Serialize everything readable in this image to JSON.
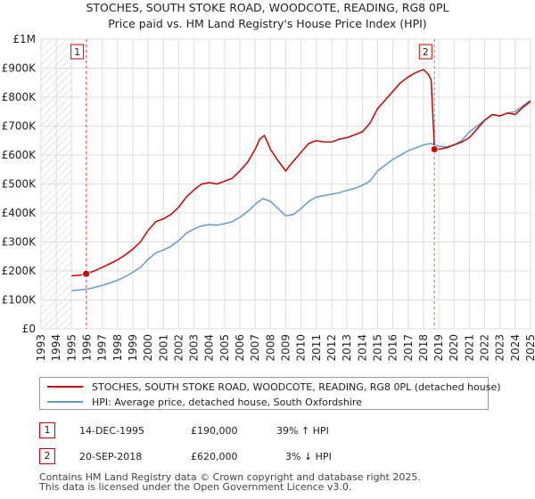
{
  "chart_data": {
    "type": "line",
    "title": "STOCHES, SOUTH STOKE ROAD, WOODCOTE, READING, RG8 0PL",
    "subtitle": "Price paid vs. HM Land Registry's House Price Index (HPI)",
    "xlabel": "",
    "ylabel": "",
    "xlim": [
      1993,
      2025
    ],
    "ylim": [
      0,
      1000000
    ],
    "y_ticks": [
      {
        "value": 0,
        "label": "£0"
      },
      {
        "value": 100000,
        "label": "£100K"
      },
      {
        "value": 200000,
        "label": "£200K"
      },
      {
        "value": 300000,
        "label": "£300K"
      },
      {
        "value": 400000,
        "label": "£400K"
      },
      {
        "value": 500000,
        "label": "£500K"
      },
      {
        "value": 600000,
        "label": "£600K"
      },
      {
        "value": 700000,
        "label": "£700K"
      },
      {
        "value": 800000,
        "label": "£800K"
      },
      {
        "value": 900000,
        "label": "£900K"
      },
      {
        "value": 1000000,
        "label": "£1M"
      }
    ],
    "x_ticks": [
      "1993",
      "1994",
      "1995",
      "1996",
      "1997",
      "1998",
      "1999",
      "2000",
      "2001",
      "2002",
      "2003",
      "2004",
      "2005",
      "2006",
      "2007",
      "2008",
      "2009",
      "2010",
      "2011",
      "2012",
      "2013",
      "2014",
      "2015",
      "2016",
      "2017",
      "2018",
      "2019",
      "2020",
      "2021",
      "2022",
      "2023",
      "2024",
      "2025"
    ],
    "grid": true,
    "legend_position": "below",
    "hatched_before": 1995.0,
    "series": [
      {
        "name": "STOCHES, SOUTH STOKE ROAD, WOODCOTE, READING, RG8 0PL (detached house)",
        "color": "#cc0000",
        "x": [
          1995.0,
          1995.5,
          1995.95,
          1996.5,
          1997.0,
          1997.5,
          1998.0,
          1998.5,
          1999.0,
          1999.5,
          2000.0,
          2000.5,
          2001.0,
          2001.5,
          2002.0,
          2002.5,
          2003.0,
          2003.5,
          2004.0,
          2004.5,
          2005.0,
          2005.5,
          2006.0,
          2006.5,
          2007.0,
          2007.3,
          2007.6,
          2008.0,
          2008.5,
          2009.0,
          2009.2,
          2009.6,
          2010.0,
          2010.5,
          2011.0,
          2011.5,
          2012.0,
          2012.5,
          2013.0,
          2013.5,
          2014.0,
          2014.5,
          2015.0,
          2015.5,
          2016.0,
          2016.5,
          2017.0,
          2017.5,
          2018.0,
          2018.3,
          2018.5,
          2018.72,
          2019.0,
          2019.5,
          2020.0,
          2020.5,
          2021.0,
          2021.5,
          2022.0,
          2022.5,
          2023.0,
          2023.5,
          2024.0,
          2024.5,
          2025.0
        ],
        "values": [
          183000,
          185000,
          190000,
          200000,
          212000,
          225000,
          238000,
          255000,
          275000,
          300000,
          340000,
          370000,
          380000,
          395000,
          420000,
          455000,
          480000,
          500000,
          505000,
          500000,
          510000,
          520000,
          545000,
          575000,
          620000,
          655000,
          668000,
          620000,
          580000,
          545000,
          560000,
          585000,
          610000,
          640000,
          650000,
          645000,
          645000,
          655000,
          660000,
          670000,
          680000,
          710000,
          760000,
          790000,
          820000,
          850000,
          870000,
          885000,
          895000,
          880000,
          860000,
          620000,
          620000,
          625000,
          635000,
          645000,
          660000,
          690000,
          720000,
          740000,
          735000,
          745000,
          740000,
          765000,
          785000
        ]
      },
      {
        "name": "HPI: Average price, detached house, South Oxfordshire",
        "color": "#6699cc",
        "x": [
          1995.0,
          1995.5,
          1996.0,
          1996.5,
          1997.0,
          1997.5,
          1998.0,
          1998.5,
          1999.0,
          1999.5,
          2000.0,
          2000.5,
          2001.0,
          2001.5,
          2002.0,
          2002.5,
          2003.0,
          2003.5,
          2004.0,
          2004.5,
          2005.0,
          2005.5,
          2006.0,
          2006.5,
          2007.0,
          2007.5,
          2008.0,
          2008.5,
          2009.0,
          2009.5,
          2010.0,
          2010.5,
          2011.0,
          2011.5,
          2012.0,
          2012.5,
          2013.0,
          2013.5,
          2014.0,
          2014.5,
          2015.0,
          2015.5,
          2016.0,
          2016.5,
          2017.0,
          2017.5,
          2018.0,
          2018.5,
          2019.0,
          2019.5,
          2020.0,
          2020.5,
          2021.0,
          2021.5,
          2022.0,
          2022.5,
          2023.0,
          2023.5,
          2024.0,
          2024.5,
          2025.0
        ],
        "values": [
          132000,
          134000,
          137000,
          143000,
          150000,
          158000,
          168000,
          180000,
          195000,
          212000,
          240000,
          262000,
          272000,
          285000,
          305000,
          330000,
          345000,
          355000,
          360000,
          358000,
          363000,
          370000,
          385000,
          405000,
          430000,
          450000,
          440000,
          415000,
          390000,
          395000,
          415000,
          440000,
          455000,
          460000,
          465000,
          470000,
          478000,
          485000,
          495000,
          510000,
          545000,
          565000,
          585000,
          600000,
          615000,
          625000,
          635000,
          640000,
          630000,
          628000,
          635000,
          650000,
          680000,
          700000,
          720000,
          740000,
          735000,
          745000,
          750000,
          770000,
          790000
        ]
      }
    ],
    "vlines": [
      1995.95,
      2018.72
    ],
    "sales": [
      {
        "marker": "1",
        "x": 1995.95,
        "value": 190000
      },
      {
        "marker": "2",
        "x": 2018.72,
        "value": 620000
      }
    ]
  },
  "legend": {
    "items": [
      {
        "label": "STOCHES, SOUTH STOKE ROAD, WOODCOTE, READING, RG8 0PL (detached house)",
        "color": "#cc0000"
      },
      {
        "label": "HPI: Average price, detached house, South Oxfordshire",
        "color": "#6699cc"
      }
    ]
  },
  "transactions": [
    {
      "marker": "1",
      "date": "14-DEC-1995",
      "price": "£190,000",
      "hpi": "39% ↑ HPI"
    },
    {
      "marker": "2",
      "date": "20-SEP-2018",
      "price": "£620,000",
      "hpi": "3% ↓ HPI"
    }
  ],
  "footer": {
    "line1": "Contains HM Land Registry data © Crown copyright and database right 2025.",
    "line2": "This data is licensed under the Open Government Licence v3.0."
  }
}
